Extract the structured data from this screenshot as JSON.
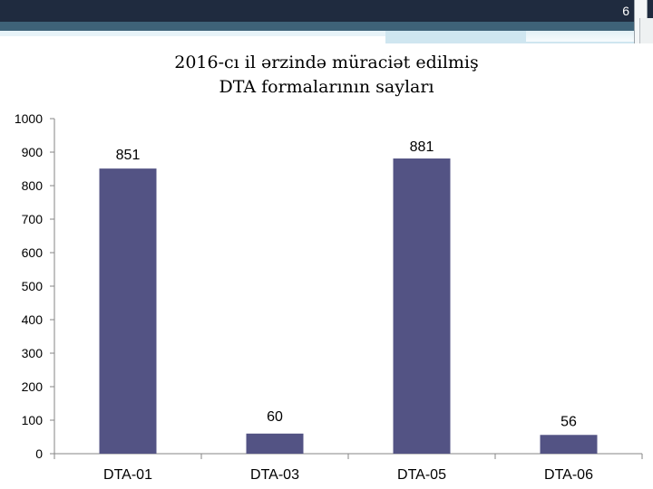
{
  "slide": {
    "number": "6"
  },
  "colors": {
    "bar": "#535384",
    "axis": "#868686",
    "header_dark": "#1f2b3f",
    "header_stripe": "#3e6278"
  },
  "chart_data": {
    "type": "bar",
    "title_line1": "2016-cı il ərzində müraciət edilmiş",
    "title_line2": "DTA formalarının sayları",
    "categories": [
      "DTA-01",
      "DTA-03",
      "DTA-05",
      "DTA-06"
    ],
    "values": [
      851,
      60,
      881,
      56
    ],
    "data_labels": [
      "851",
      "60",
      "881",
      "56"
    ],
    "ylim": [
      0,
      1000
    ],
    "yticks": [
      0,
      100,
      200,
      300,
      400,
      500,
      600,
      700,
      800,
      900,
      1000
    ],
    "ytick_labels": [
      "0",
      "100",
      "200",
      "300",
      "400",
      "500",
      "600",
      "700",
      "800",
      "900",
      "1000"
    ],
    "xlabel": "",
    "ylabel": "",
    "grid": false,
    "legend": "none"
  }
}
